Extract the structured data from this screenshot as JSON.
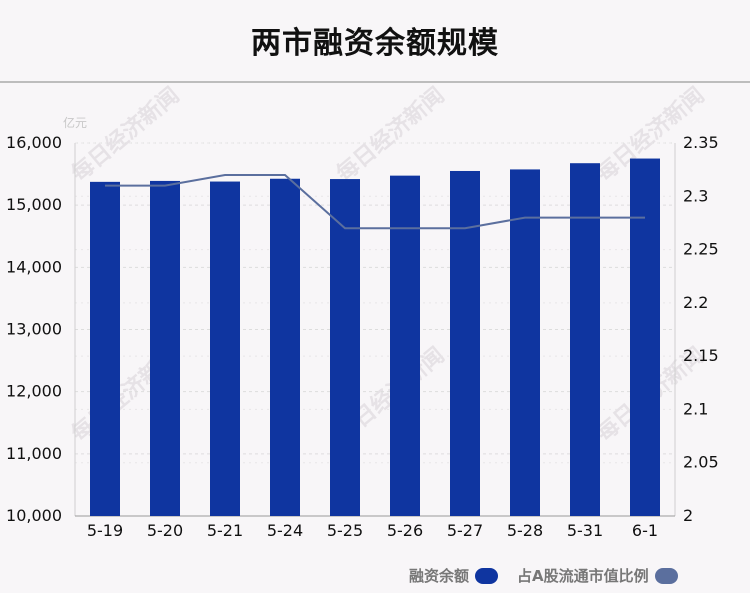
{
  "title": "两市融资余额规模",
  "unit": "亿元",
  "legend": {
    "series1": "融资余额",
    "series2": "占A股流通市值比例"
  },
  "watermark_text": "每日经济新闻",
  "colors": {
    "bar": "#0f35a0",
    "line": "#5b6f9e",
    "grid": "#dddddd"
  },
  "chart_data": {
    "type": "bar",
    "categories": [
      "5-19",
      "5-20",
      "5-21",
      "5-24",
      "5-25",
      "5-26",
      "5-27",
      "5-28",
      "5-31",
      "6-1"
    ],
    "series": [
      {
        "name": "融资余额",
        "type": "bar",
        "axis": "left",
        "values": [
          15375,
          15390,
          15380,
          15425,
          15420,
          15475,
          15550,
          15575,
          15675,
          15750
        ]
      },
      {
        "name": "占A股流通市值比例",
        "type": "line",
        "axis": "right",
        "values": [
          2.31,
          2.31,
          2.32,
          2.32,
          2.27,
          2.27,
          2.27,
          2.28,
          2.28,
          2.28
        ]
      }
    ],
    "y_left": {
      "min": 10000,
      "max": 16000,
      "ticks": [
        10000,
        11000,
        12000,
        13000,
        14000,
        15000,
        16000
      ],
      "tick_labels": [
        "10,000",
        "11,000",
        "12,000",
        "13,000",
        "14,000",
        "15,000",
        "16,000"
      ]
    },
    "y_right": {
      "min": 2,
      "max": 2.35,
      "ticks": [
        2,
        2.05,
        2.1,
        2.15,
        2.2,
        2.25,
        2.3,
        2.35
      ],
      "tick_labels": [
        "2",
        "2.05",
        "2.1",
        "2.15",
        "2.2",
        "2.25",
        "2.3",
        "2.35"
      ]
    },
    "grid": true,
    "legend_position": "bottom-right"
  }
}
